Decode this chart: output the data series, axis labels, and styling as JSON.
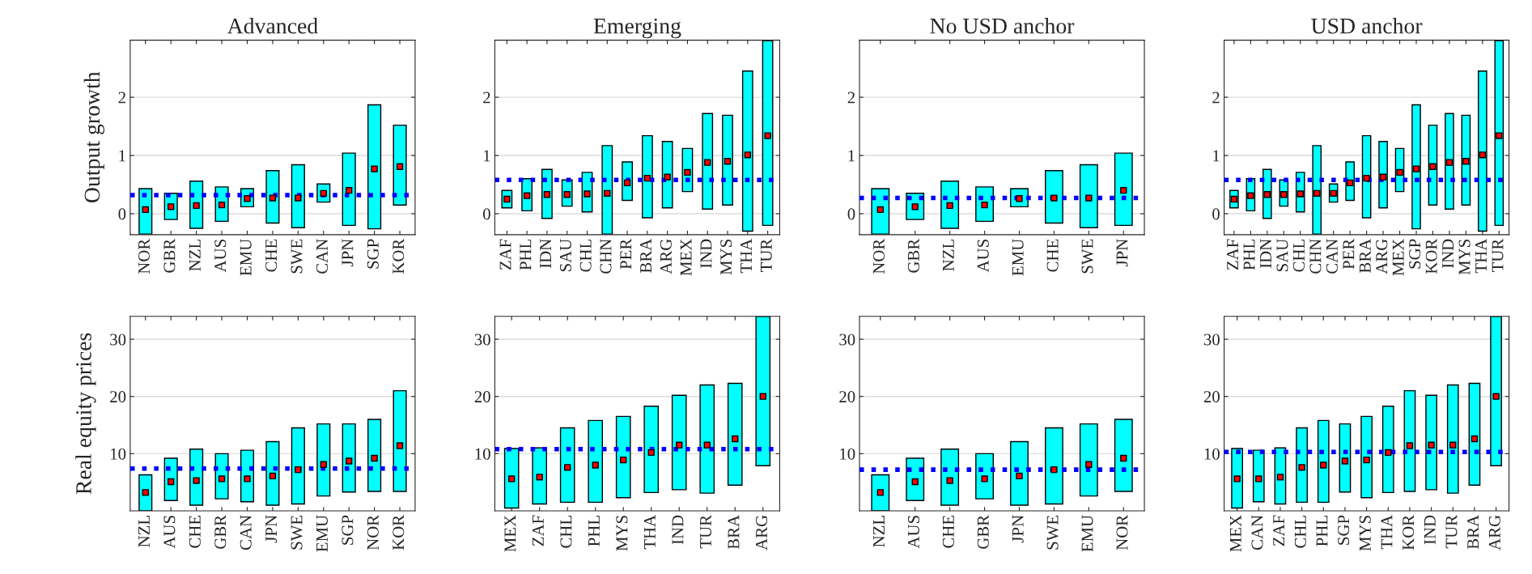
{
  "chart_data": [
    {
      "type": "bar",
      "title": "Advanced",
      "ylabel": "Output growth",
      "categories": [
        "NOR",
        "GBR",
        "NZL",
        "AUS",
        "EMU",
        "CHE",
        "SWE",
        "CAN",
        "JPN",
        "SGP",
        "KOR"
      ],
      "series": [
        {
          "color": "#00ffff",
          "base": [
            -0.35,
            -0.1,
            -0.25,
            -0.13,
            0.12,
            -0.16,
            -0.24,
            0.2,
            -0.2,
            -0.26,
            0.15
          ],
          "values": [
            0.78,
            0.45,
            0.81,
            0.59,
            0.31,
            0.9,
            1.08,
            0.31,
            1.24,
            2.13,
            1.37
          ]
        },
        {
          "type": "scatter",
          "color": "#ff0000",
          "marker": "square",
          "x": [
            "NOR",
            "GBR",
            "NZL",
            "AUS",
            "EMU",
            "CHE",
            "SWE",
            "CAN",
            "JPN",
            "SGP",
            "KOR"
          ],
          "values": [
            0.07,
            0.12,
            0.14,
            0.15,
            0.26,
            0.27,
            0.27,
            0.35,
            0.4,
            0.77,
            0.81
          ]
        }
      ],
      "ylim": [
        -0.36,
        2.98
      ],
      "yticks": [
        0,
        1,
        2
      ],
      "grid": "y",
      "ref_lines": [
        {
          "axis": "y",
          "value": 0.32,
          "color": "#0000ff",
          "line_style": "dotted"
        }
      ]
    },
    {
      "type": "bar",
      "title": "Emerging",
      "categories": [
        "ZAF",
        "PHL",
        "IDN",
        "SAU",
        "CHL",
        "CHN",
        "PER",
        "BRA",
        "ARG",
        "MEX",
        "IND",
        "MYS",
        "THA",
        "TUR"
      ],
      "series": [
        {
          "color": "#00ffff",
          "base": [
            0.1,
            0.05,
            -0.08,
            0.13,
            0.03,
            -0.35,
            0.23,
            -0.07,
            0.1,
            0.38,
            0.08,
            0.15,
            -0.3,
            -0.2
          ],
          "values": [
            0.3,
            0.55,
            0.84,
            0.45,
            0.68,
            1.52,
            0.66,
            1.41,
            1.14,
            0.74,
            1.64,
            1.54,
            2.75,
            3.17
          ]
        },
        {
          "type": "scatter",
          "color": "#ff0000",
          "marker": "square",
          "x": [
            "ZAF",
            "PHL",
            "IDN",
            "SAU",
            "CHL",
            "CHN",
            "PER",
            "BRA",
            "ARG",
            "MEX",
            "IND",
            "MYS",
            "THA",
            "TUR"
          ],
          "values": [
            0.25,
            0.31,
            0.33,
            0.33,
            0.34,
            0.35,
            0.53,
            0.61,
            0.63,
            0.71,
            0.88,
            0.9,
            1.01,
            1.34
          ]
        }
      ],
      "ylim": [
        -0.36,
        2.98
      ],
      "yticks": [
        0,
        1,
        2
      ],
      "grid": "y",
      "ref_lines": [
        {
          "axis": "y",
          "value": 0.58,
          "color": "#0000ff",
          "line_style": "dotted"
        }
      ]
    },
    {
      "type": "bar",
      "title": "No USD anchor",
      "categories": [
        "NOR",
        "GBR",
        "NZL",
        "AUS",
        "EMU",
        "CHE",
        "SWE",
        "JPN"
      ],
      "series": [
        {
          "color": "#00ffff",
          "base": [
            -0.35,
            -0.1,
            -0.25,
            -0.13,
            0.12,
            -0.16,
            -0.24,
            -0.2
          ],
          "values": [
            0.78,
            0.45,
            0.81,
            0.59,
            0.31,
            0.9,
            1.08,
            1.24
          ]
        },
        {
          "type": "scatter",
          "color": "#ff0000",
          "marker": "square",
          "x": [
            "NOR",
            "GBR",
            "NZL",
            "AUS",
            "EMU",
            "CHE",
            "SWE",
            "JPN"
          ],
          "values": [
            0.07,
            0.12,
            0.14,
            0.15,
            0.26,
            0.27,
            0.27,
            0.4
          ]
        }
      ],
      "ylim": [
        -0.36,
        2.98
      ],
      "yticks": [
        0,
        1,
        2
      ],
      "grid": "y",
      "ref_lines": [
        {
          "axis": "y",
          "value": 0.27,
          "color": "#0000ff",
          "line_style": "dotted"
        }
      ]
    },
    {
      "type": "bar",
      "title": "USD anchor",
      "categories": [
        "ZAF",
        "PHL",
        "IDN",
        "SAU",
        "CHL",
        "CHN",
        "CAN",
        "PER",
        "BRA",
        "ARG",
        "MEX",
        "SGP",
        "KOR",
        "IND",
        "MYS",
        "THA",
        "TUR"
      ],
      "series": [
        {
          "color": "#00ffff",
          "base": [
            0.1,
            0.05,
            -0.08,
            0.13,
            0.03,
            -0.35,
            0.2,
            0.23,
            -0.07,
            0.1,
            0.38,
            -0.26,
            0.15,
            0.08,
            0.15,
            -0.3,
            -0.2
          ],
          "values": [
            0.3,
            0.55,
            0.84,
            0.45,
            0.68,
            1.52,
            0.31,
            0.66,
            1.41,
            1.14,
            0.74,
            2.13,
            1.37,
            1.64,
            1.54,
            2.75,
            3.17
          ]
        },
        {
          "type": "scatter",
          "color": "#ff0000",
          "marker": "square",
          "x": [
            "ZAF",
            "PHL",
            "IDN",
            "SAU",
            "CHL",
            "CHN",
            "CAN",
            "PER",
            "BRA",
            "ARG",
            "MEX",
            "SGP",
            "KOR",
            "IND",
            "MYS",
            "THA",
            "TUR"
          ],
          "values": [
            0.25,
            0.31,
            0.33,
            0.33,
            0.34,
            0.35,
            0.35,
            0.53,
            0.61,
            0.63,
            0.71,
            0.77,
            0.81,
            0.88,
            0.9,
            1.01,
            1.34
          ]
        }
      ],
      "ylim": [
        -0.36,
        2.98
      ],
      "yticks": [
        0,
        1,
        2
      ],
      "grid": "y",
      "ref_lines": [
        {
          "axis": "y",
          "value": 0.58,
          "color": "#0000ff",
          "line_style": "dotted"
        }
      ]
    },
    {
      "type": "bar",
      "ylabel": "Real equity prices",
      "categories": [
        "NZL",
        "AUS",
        "CHE",
        "GBR",
        "CAN",
        "JPN",
        "SWE",
        "EMU",
        "SGP",
        "NOR",
        "KOR"
      ],
      "series": [
        {
          "color": "#00ffff",
          "base": [
            0,
            1.8,
            1,
            2.1,
            1.6,
            1,
            1.2,
            2.6,
            3.3,
            3.4,
            3.4
          ],
          "values": [
            6.3,
            7.4,
            9.8,
            7.9,
            9,
            11.1,
            13.3,
            12.6,
            11.9,
            12.6,
            17.6
          ]
        },
        {
          "type": "scatter",
          "color": "#ff0000",
          "marker": "square",
          "x": [
            "NZL",
            "AUS",
            "CHE",
            "GBR",
            "CAN",
            "JPN",
            "SWE",
            "EMU",
            "SGP",
            "NOR",
            "KOR"
          ],
          "values": [
            3.2,
            5.1,
            5.3,
            5.6,
            5.6,
            6.1,
            7.2,
            8.1,
            8.7,
            9.2,
            11.4
          ]
        }
      ],
      "ylim": [
        0,
        34
      ],
      "yticks": [
        10,
        20,
        30
      ],
      "grid": "y",
      "ref_lines": [
        {
          "axis": "y",
          "value": 7.4,
          "color": "#0000ff",
          "line_style": "dotted"
        }
      ]
    },
    {
      "type": "bar",
      "categories": [
        "MEX",
        "ZAF",
        "CHL",
        "PHL",
        "MYS",
        "THA",
        "IND",
        "TUR",
        "BRA",
        "ARG"
      ],
      "series": [
        {
          "color": "#00ffff",
          "base": [
            0.5,
            1.2,
            1.5,
            1.5,
            2.3,
            3.2,
            3.7,
            3.1,
            4.5,
            7.9
          ],
          "values": [
            10.4,
            9.8,
            13,
            14.3,
            14.2,
            15.1,
            16.5,
            18.9,
            17.8,
            26.1
          ]
        },
        {
          "type": "scatter",
          "color": "#ff0000",
          "marker": "square",
          "x": [
            "MEX",
            "ZAF",
            "CHL",
            "PHL",
            "MYS",
            "THA",
            "IND",
            "TUR",
            "BRA",
            "ARG"
          ],
          "values": [
            5.6,
            5.9,
            7.6,
            8,
            8.9,
            10.2,
            11.5,
            11.5,
            12.6,
            20
          ]
        }
      ],
      "ylim": [
        0,
        34
      ],
      "yticks": [
        10,
        20,
        30
      ],
      "grid": "y",
      "ref_lines": [
        {
          "axis": "y",
          "value": 10.8,
          "color": "#0000ff",
          "line_style": "dotted"
        }
      ]
    },
    {
      "type": "bar",
      "categories": [
        "NZL",
        "AUS",
        "CHE",
        "GBR",
        "JPN",
        "SWE",
        "EMU",
        "NOR"
      ],
      "series": [
        {
          "color": "#00ffff",
          "base": [
            0,
            1.8,
            1,
            2.1,
            1,
            1.2,
            2.6,
            3.4
          ],
          "values": [
            6.3,
            7.4,
            9.8,
            7.9,
            11.1,
            13.3,
            12.6,
            12.6
          ]
        },
        {
          "type": "scatter",
          "color": "#ff0000",
          "marker": "square",
          "x": [
            "NZL",
            "AUS",
            "CHE",
            "GBR",
            "JPN",
            "SWE",
            "EMU",
            "NOR"
          ],
          "values": [
            3.2,
            5.1,
            5.3,
            5.6,
            6.1,
            7.2,
            8.1,
            9.2
          ]
        }
      ],
      "ylim": [
        0,
        34
      ],
      "yticks": [
        10,
        20,
        30
      ],
      "grid": "y",
      "ref_lines": [
        {
          "axis": "y",
          "value": 7.2,
          "color": "#0000ff",
          "line_style": "dotted"
        }
      ]
    },
    {
      "type": "bar",
      "categories": [
        "MEX",
        "CAN",
        "ZAF",
        "CHL",
        "PHL",
        "SGP",
        "MYS",
        "THA",
        "KOR",
        "IND",
        "TUR",
        "BRA",
        "ARG"
      ],
      "series": [
        {
          "color": "#00ffff",
          "base": [
            0.5,
            1.6,
            1.2,
            1.5,
            1.5,
            3.3,
            2.3,
            3.2,
            3.4,
            3.7,
            3.1,
            4.5,
            7.9
          ],
          "values": [
            10.4,
            9,
            9.8,
            13,
            14.3,
            11.9,
            14.2,
            15.1,
            17.6,
            16.5,
            18.9,
            17.8,
            26.1
          ]
        },
        {
          "type": "scatter",
          "color": "#ff0000",
          "marker": "square",
          "x": [
            "MEX",
            "CAN",
            "ZAF",
            "CHL",
            "PHL",
            "SGP",
            "MYS",
            "THA",
            "KOR",
            "IND",
            "TUR",
            "BRA",
            "ARG"
          ],
          "values": [
            5.6,
            5.6,
            5.9,
            7.6,
            8,
            8.7,
            8.9,
            10.2,
            11.4,
            11.5,
            11.5,
            12.6,
            20
          ]
        }
      ],
      "ylim": [
        0,
        34
      ],
      "yticks": [
        10,
        20,
        30
      ],
      "grid": "y",
      "ref_lines": [
        {
          "axis": "y",
          "value": 10.3,
          "color": "#0000ff",
          "line_style": "dotted"
        }
      ]
    }
  ]
}
